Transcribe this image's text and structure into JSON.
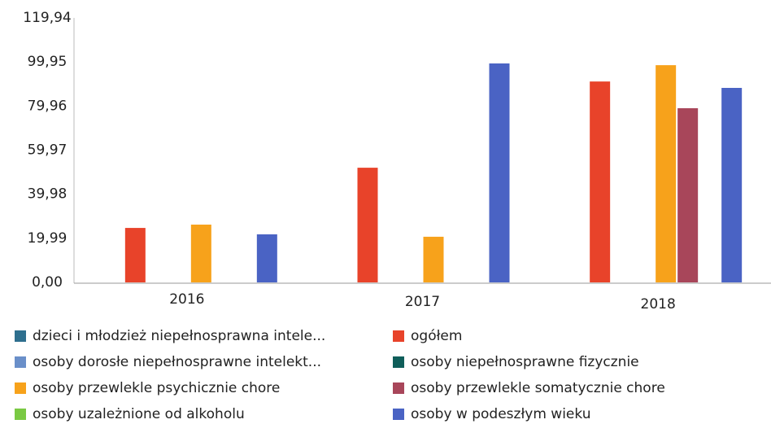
{
  "chart_data": {
    "type": "bar",
    "categories": [
      "2016",
      "2017",
      "2018"
    ],
    "series": [
      {
        "name": "dzieci i młodzież niepełnosprawna intele...",
        "color": "#2e6f8e",
        "values": [
          null,
          null,
          null
        ]
      },
      {
        "name": "ogółem",
        "color": "#e8432a",
        "values": [
          24.7,
          52.0,
          91.1
        ]
      },
      {
        "name": "osoby dorosłe niepełnosprawne intelekt...",
        "color": "#6a8fc9",
        "values": [
          null,
          null,
          null
        ]
      },
      {
        "name": "osoby niepełnosprawne fizycznie",
        "color": "#0f5e5a",
        "values": [
          null,
          null,
          null
        ]
      },
      {
        "name": "osoby przewlekle psychicznie chore",
        "color": "#f7a21b",
        "values": [
          26.2,
          20.7,
          98.5
        ]
      },
      {
        "name": "osoby przewlekle somatycznie chore",
        "color": "#a8465a",
        "values": [
          null,
          null,
          79.0
        ]
      },
      {
        "name": "osoby uzależnione od alkoholu",
        "color": "#7ac943",
        "values": [
          null,
          null,
          null
        ]
      },
      {
        "name": "osoby w podeszłym wieku",
        "color": "#4a63c4",
        "values": [
          21.8,
          99.3,
          88.2
        ]
      }
    ],
    "ylim": [
      0,
      119.94
    ],
    "yticks": [
      {
        "value": 0,
        "label": "0,00"
      },
      {
        "value": 19.99,
        "label": "19,99"
      },
      {
        "value": 39.98,
        "label": "39,98"
      },
      {
        "value": 59.97,
        "label": "59,97"
      },
      {
        "value": 79.96,
        "label": "79,96"
      },
      {
        "value": 99.95,
        "label": "99,95"
      },
      {
        "value": 119.94,
        "label": "119,94"
      }
    ],
    "grid": false,
    "legend": "bottom"
  }
}
